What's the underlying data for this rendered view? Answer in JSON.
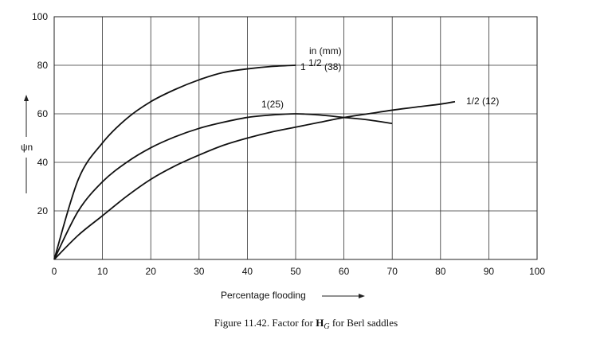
{
  "chart_data": {
    "type": "line",
    "xlabel": "Percentage flooding",
    "ylabel": "ψn",
    "xlim": [
      0,
      100
    ],
    "ylim": [
      0,
      100
    ],
    "xticks": [
      0,
      10,
      20,
      30,
      40,
      50,
      60,
      70,
      80,
      90,
      100
    ],
    "yticks": [
      20,
      40,
      60,
      80,
      100
    ],
    "grid": true,
    "units_note": "in (mm)",
    "series": [
      {
        "name": "1 1/2 (38)",
        "label_main": "1 ",
        "label_frac": "1/2",
        "label_rest": " (38)",
        "x": [
          0,
          5,
          10,
          15,
          20,
          25,
          30,
          35,
          40,
          45,
          50
        ],
        "y": [
          0,
          33,
          48,
          58,
          65,
          70,
          74,
          77,
          78.5,
          79.5,
          80
        ]
      },
      {
        "name": "1(25)",
        "x": [
          0,
          5,
          10,
          15,
          20,
          25,
          30,
          35,
          40,
          45,
          50,
          55,
          60,
          65,
          70
        ],
        "y": [
          0,
          20,
          32,
          40,
          46,
          50.5,
          54,
          56.5,
          58.5,
          59.5,
          60,
          59.5,
          58.5,
          57.5,
          56
        ]
      },
      {
        "name": "1/2 (12)",
        "x": [
          0,
          5,
          10,
          15,
          20,
          25,
          30,
          35,
          40,
          45,
          50,
          55,
          60,
          65,
          70,
          75,
          80,
          83
        ],
        "y": [
          0,
          10,
          18,
          26,
          33,
          38.5,
          43,
          47,
          50,
          52.5,
          54.5,
          56.5,
          58.5,
          60,
          61.5,
          62.8,
          64,
          65
        ]
      }
    ]
  },
  "caption": {
    "prefix": "Figure 11.42.   Factor for ",
    "bold": "H",
    "sub": "G",
    "suffix": " for Berl saddles"
  }
}
